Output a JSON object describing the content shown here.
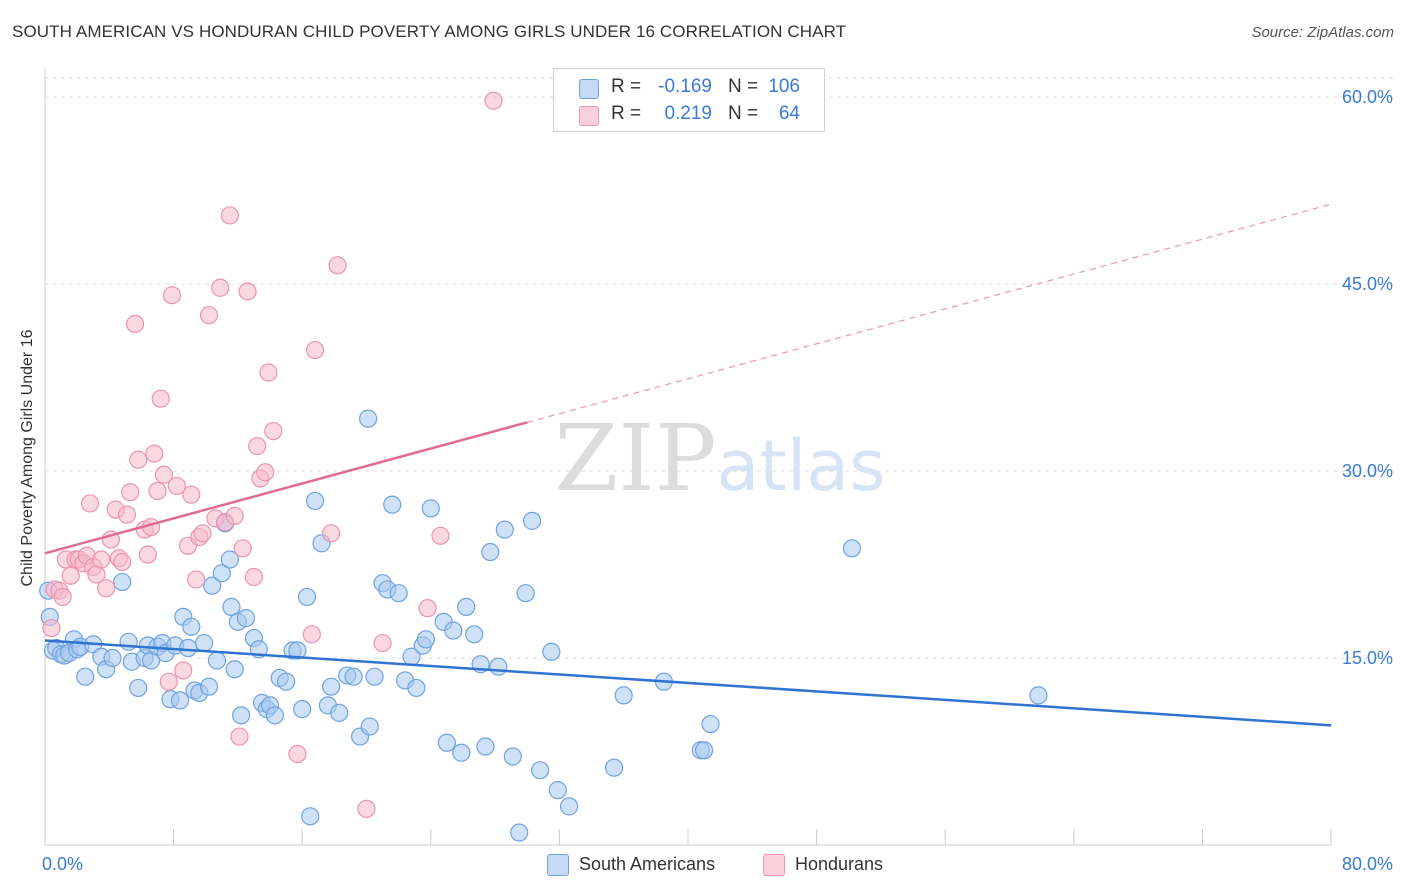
{
  "title": "SOUTH AMERICAN VS HONDURAN CHILD POVERTY AMONG GIRLS UNDER 16 CORRELATION CHART",
  "source": "Source: ZipAtlas.com",
  "watermark": "ZIPatlas",
  "stats": [
    {
      "r_label": "R =",
      "r_value": "-0.169",
      "n_label": "N =",
      "n_value": "106",
      "color": "#a8c8f0"
    },
    {
      "r_label": "R =",
      "r_value": "0.219",
      "n_label": "N =",
      "n_value": "64",
      "color": "#f5b8cb"
    }
  ],
  "legend": [
    {
      "label": "South Americans",
      "color": "#a8c8f0"
    },
    {
      "label": "Hondurans",
      "color": "#f5b8cb"
    }
  ],
  "chart_data": {
    "type": "scatter",
    "title": "SOUTH AMERICAN VS HONDURAN CHILD POVERTY AMONG GIRLS UNDER 16 CORRELATION CHART",
    "xlabel": "",
    "ylabel": "Child Poverty Among Girls Under 16",
    "xlim": [
      0,
      80
    ],
    "ylim": [
      0,
      60
    ],
    "x_tick_labels": [
      "0.0%",
      "80.0%"
    ],
    "y_ticks": [
      15,
      30,
      45,
      60
    ],
    "y_tick_labels": [
      "15.0%",
      "30.0%",
      "45.0%",
      "60.0%"
    ],
    "grid": true,
    "legend_position": "bottom",
    "series": [
      {
        "name": "South Americans",
        "color": "#6fa3e0",
        "fill": "#a8c8f0",
        "trend": {
          "x": [
            0,
            80
          ],
          "y": [
            16.4,
            9.6
          ],
          "style": "solid"
        },
        "points": [
          [
            0.2,
            20.4
          ],
          [
            0.3,
            18.3
          ],
          [
            0.5,
            15.6
          ],
          [
            0.7,
            15.8
          ],
          [
            1.0,
            15.3
          ],
          [
            1.2,
            15.2
          ],
          [
            1.5,
            15.4
          ],
          [
            1.8,
            16.5
          ],
          [
            2.0,
            15.7
          ],
          [
            2.2,
            15.9
          ],
          [
            2.5,
            13.5
          ],
          [
            3.0,
            16.1
          ],
          [
            3.5,
            15.1
          ],
          [
            3.8,
            14.1
          ],
          [
            4.2,
            15.0
          ],
          [
            4.8,
            21.1
          ],
          [
            5.2,
            16.3
          ],
          [
            5.4,
            14.7
          ],
          [
            5.8,
            12.6
          ],
          [
            6.2,
            15.0
          ],
          [
            6.4,
            16.0
          ],
          [
            6.6,
            14.8
          ],
          [
            7.0,
            15.9
          ],
          [
            7.3,
            16.2
          ],
          [
            7.5,
            15.4
          ],
          [
            7.8,
            11.7
          ],
          [
            8.1,
            16.0
          ],
          [
            8.4,
            11.6
          ],
          [
            8.6,
            18.3
          ],
          [
            8.9,
            15.8
          ],
          [
            9.1,
            17.5
          ],
          [
            9.3,
            12.4
          ],
          [
            9.6,
            12.2
          ],
          [
            9.9,
            16.2
          ],
          [
            10.2,
            12.7
          ],
          [
            10.4,
            20.8
          ],
          [
            10.7,
            14.8
          ],
          [
            11.0,
            21.8
          ],
          [
            11.2,
            25.8
          ],
          [
            11.5,
            22.9
          ],
          [
            11.6,
            19.1
          ],
          [
            11.8,
            14.1
          ],
          [
            12.0,
            17.9
          ],
          [
            12.2,
            10.4
          ],
          [
            12.5,
            18.2
          ],
          [
            13.0,
            16.6
          ],
          [
            13.3,
            15.7
          ],
          [
            13.5,
            11.4
          ],
          [
            13.8,
            10.9
          ],
          [
            14.0,
            11.2
          ],
          [
            14.3,
            10.4
          ],
          [
            14.6,
            13.4
          ],
          [
            15.0,
            13.1
          ],
          [
            15.4,
            15.6
          ],
          [
            15.7,
            15.6
          ],
          [
            16.0,
            10.9
          ],
          [
            16.3,
            19.9
          ],
          [
            16.5,
            2.3
          ],
          [
            16.8,
            27.6
          ],
          [
            17.2,
            24.2
          ],
          [
            17.6,
            11.2
          ],
          [
            17.8,
            12.7
          ],
          [
            18.3,
            10.6
          ],
          [
            18.8,
            13.6
          ],
          [
            19.2,
            13.5
          ],
          [
            19.6,
            8.7
          ],
          [
            20.1,
            34.2
          ],
          [
            20.2,
            9.5
          ],
          [
            20.5,
            13.5
          ],
          [
            21.0,
            21.0
          ],
          [
            21.3,
            20.5
          ],
          [
            21.6,
            27.3
          ],
          [
            22.0,
            20.2
          ],
          [
            22.4,
            13.2
          ],
          [
            22.8,
            15.1
          ],
          [
            23.1,
            12.6
          ],
          [
            23.5,
            16.0
          ],
          [
            23.7,
            16.5
          ],
          [
            24.0,
            27.0
          ],
          [
            24.8,
            17.9
          ],
          [
            25.0,
            8.2
          ],
          [
            25.4,
            17.2
          ],
          [
            25.9,
            7.4
          ],
          [
            26.2,
            19.1
          ],
          [
            26.7,
            16.9
          ],
          [
            27.1,
            14.5
          ],
          [
            27.4,
            7.9
          ],
          [
            27.7,
            23.5
          ],
          [
            28.2,
            14.3
          ],
          [
            28.6,
            25.3
          ],
          [
            29.1,
            7.1
          ],
          [
            29.5,
            1.0
          ],
          [
            29.9,
            20.2
          ],
          [
            30.3,
            26.0
          ],
          [
            30.8,
            6.0
          ],
          [
            31.5,
            15.5
          ],
          [
            31.9,
            4.4
          ],
          [
            32.6,
            3.1
          ],
          [
            35.4,
            6.2
          ],
          [
            36.0,
            12.0
          ],
          [
            38.5,
            13.1
          ],
          [
            40.8,
            7.6
          ],
          [
            41.0,
            7.6
          ],
          [
            41.4,
            9.7
          ],
          [
            50.2,
            23.8
          ],
          [
            61.8,
            12.0
          ]
        ]
      },
      {
        "name": "Hondurans",
        "color": "#ec94b0",
        "fill": "#f5b8cb",
        "trend": {
          "x": [
            0,
            30
          ],
          "y": [
            23.4,
            33.9
          ],
          "style": "solid",
          "extended_x": [
            30,
            80
          ],
          "extended_y": [
            33.9,
            51.4
          ],
          "extended_style": "dashed"
        },
        "points": [
          [
            0.4,
            17.4
          ],
          [
            0.6,
            20.5
          ],
          [
            0.9,
            20.4
          ],
          [
            1.1,
            19.9
          ],
          [
            1.3,
            22.9
          ],
          [
            1.6,
            21.6
          ],
          [
            1.9,
            22.9
          ],
          [
            2.1,
            22.9
          ],
          [
            2.4,
            22.6
          ],
          [
            2.6,
            23.2
          ],
          [
            2.8,
            27.4
          ],
          [
            3.0,
            22.3
          ],
          [
            3.2,
            21.7
          ],
          [
            3.5,
            22.9
          ],
          [
            3.8,
            20.6
          ],
          [
            4.1,
            24.5
          ],
          [
            4.4,
            26.9
          ],
          [
            4.6,
            23.0
          ],
          [
            4.8,
            22.7
          ],
          [
            5.1,
            26.5
          ],
          [
            5.3,
            28.3
          ],
          [
            5.6,
            41.8
          ],
          [
            5.8,
            30.9
          ],
          [
            6.2,
            25.3
          ],
          [
            6.4,
            23.3
          ],
          [
            6.6,
            25.5
          ],
          [
            6.8,
            31.4
          ],
          [
            7.0,
            28.4
          ],
          [
            7.2,
            35.8
          ],
          [
            7.4,
            29.7
          ],
          [
            7.7,
            13.1
          ],
          [
            7.9,
            44.1
          ],
          [
            8.2,
            28.8
          ],
          [
            8.6,
            14.0
          ],
          [
            8.9,
            24.0
          ],
          [
            9.1,
            28.1
          ],
          [
            9.4,
            21.3
          ],
          [
            9.6,
            24.7
          ],
          [
            9.8,
            25.0
          ],
          [
            10.2,
            42.5
          ],
          [
            10.6,
            26.2
          ],
          [
            10.9,
            44.7
          ],
          [
            11.2,
            25.9
          ],
          [
            11.5,
            50.5
          ],
          [
            11.8,
            26.4
          ],
          [
            12.1,
            8.7
          ],
          [
            12.3,
            23.8
          ],
          [
            12.6,
            44.4
          ],
          [
            13.0,
            21.5
          ],
          [
            13.2,
            32.0
          ],
          [
            13.4,
            29.4
          ],
          [
            13.7,
            29.9
          ],
          [
            13.9,
            37.9
          ],
          [
            14.2,
            33.2
          ],
          [
            15.7,
            7.3
          ],
          [
            16.6,
            16.9
          ],
          [
            16.8,
            39.7
          ],
          [
            17.8,
            25.0
          ],
          [
            18.2,
            46.5
          ],
          [
            20.0,
            2.9
          ],
          [
            21.0,
            16.2
          ],
          [
            23.8,
            19.0
          ],
          [
            24.6,
            24.8
          ],
          [
            27.9,
            59.7
          ]
        ]
      }
    ]
  }
}
